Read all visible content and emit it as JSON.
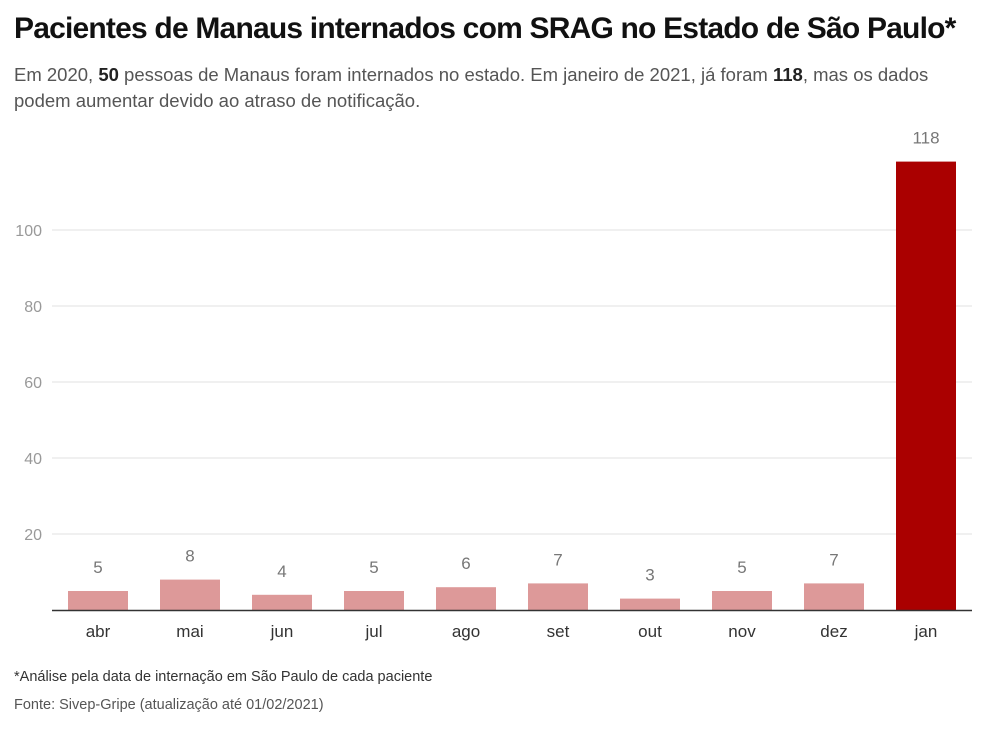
{
  "header": {
    "title": "Pacientes de Manaus internados com SRAG no Estado de São Paulo*",
    "subtitle_parts": [
      {
        "text": "Em 2020, ",
        "bold": false
      },
      {
        "text": "50",
        "bold": true
      },
      {
        "text": " pessoas de Manaus foram internados no estado. Em janeiro de 2021, já foram ",
        "bold": false
      },
      {
        "text": "118",
        "bold": true
      },
      {
        "text": ", mas os dados podem aumentar devido ao atraso de notificação.",
        "bold": false
      }
    ]
  },
  "chart_data": {
    "type": "bar",
    "categories": [
      "abr",
      "mai",
      "jun",
      "jul",
      "ago",
      "set",
      "out",
      "nov",
      "dez",
      "jan"
    ],
    "values": [
      5,
      8,
      4,
      5,
      6,
      7,
      3,
      5,
      7,
      118
    ],
    "data_labels": [
      "5",
      "8",
      "4",
      "5",
      "6",
      "7",
      "3",
      "5",
      "7",
      "118"
    ],
    "yticks": [
      20,
      40,
      60,
      80,
      100
    ],
    "ylim": [
      0,
      118
    ],
    "grid": true,
    "colors": {
      "bar": "#dd9999",
      "highlight": "#aa0000",
      "grid": "#e2e2e2",
      "baseline": "#333333"
    },
    "highlight_index": 9
  },
  "footer": {
    "note": "*Análise pela data de internação em São Paulo de cada paciente",
    "source": "Fonte: Sivep-Gripe (atualização até 01/02/2021)"
  }
}
